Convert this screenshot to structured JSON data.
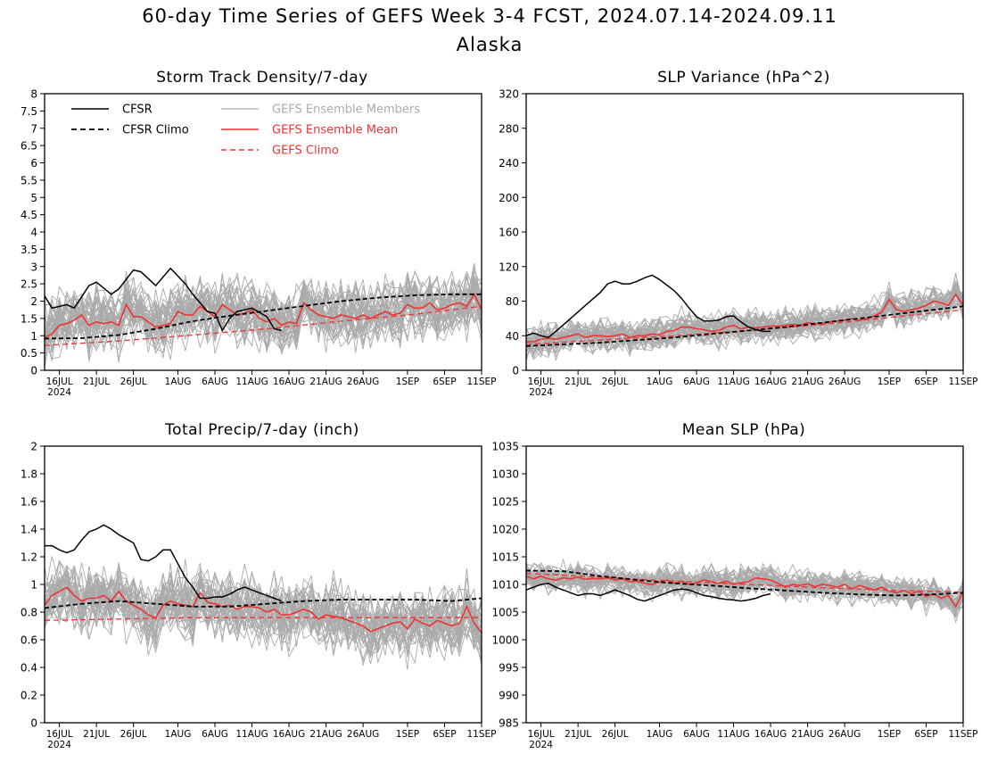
{
  "header": {
    "title_line1": "60-day Time Series of GEFS Week 3-4 FCST, 2024.07.14-2024.09.11",
    "title_line2": "Alaska"
  },
  "legend": {
    "cfsr": "CFSR",
    "cfsr_climo": "CFSR Climo",
    "gefs_members": "GEFS Ensemble Members",
    "gefs_mean": "GEFS Ensemble Mean",
    "gefs_climo": "GEFS Climo"
  },
  "colors": {
    "cfsr": "#000000",
    "members": "#aaaaaa",
    "gefs": "#ee3333"
  },
  "x_axis": {
    "tick_labels": [
      "16JUL",
      "21JUL",
      "26JUL",
      "1AUG",
      "6AUG",
      "11AUG",
      "16AUG",
      "21AUG",
      "26AUG",
      "1SEP",
      "6SEP",
      "11SEP"
    ],
    "tick_days": [
      2,
      7,
      12,
      18,
      23,
      28,
      33,
      38,
      43,
      49,
      54,
      59
    ],
    "year_label": "2024",
    "range": [
      0,
      59
    ]
  },
  "chart_data": [
    {
      "type": "line",
      "title": "Storm Track Density/7-day",
      "ylim": [
        0,
        8
      ],
      "yticks": [
        0,
        0.5,
        1,
        1.5,
        2,
        2.5,
        3,
        3.5,
        4,
        4.5,
        5,
        5.5,
        6,
        6.5,
        7,
        7.5,
        8
      ],
      "ytick_labels": [
        "0",
        "0.5",
        "1",
        "1.5",
        "2",
        "2.5",
        "3",
        "3.5",
        "4",
        "4.5",
        "5",
        "5.5",
        "6",
        "6.5",
        "7",
        "7.5",
        "8"
      ],
      "cfsr": {
        "x": [
          0,
          1,
          3,
          4,
          6,
          7,
          9,
          10,
          12,
          13,
          15,
          17,
          19,
          20,
          22,
          23,
          24,
          25,
          26,
          27,
          28,
          30,
          31,
          32
        ],
        "y": [
          2.15,
          1.8,
          1.9,
          1.8,
          2.45,
          2.55,
          2.2,
          2.35,
          2.9,
          2.85,
          2.45,
          2.95,
          2.5,
          2.2,
          1.7,
          1.65,
          1.15,
          1.5,
          1.7,
          1.75,
          1.8,
          1.55,
          1.2,
          1.15
        ]
      },
      "cfsr_climo": {
        "x": [
          0,
          5,
          10,
          15,
          20,
          25,
          30,
          35,
          40,
          45,
          50,
          55,
          59
        ],
        "y": [
          0.92,
          0.93,
          1.02,
          1.2,
          1.42,
          1.58,
          1.72,
          1.86,
          2.0,
          2.1,
          2.17,
          2.2,
          2.2
        ]
      },
      "gefs_mean": {
        "x": [
          0,
          1,
          2,
          3,
          4,
          5,
          6,
          7,
          8,
          9,
          10,
          11,
          12,
          13,
          14,
          15,
          16,
          17,
          18,
          19,
          20,
          21,
          22,
          23,
          24,
          25,
          26,
          27,
          28,
          29,
          30,
          31,
          32,
          33,
          34,
          35,
          36,
          37,
          38,
          39,
          40,
          41,
          42,
          43,
          44,
          45,
          46,
          47,
          48,
          49,
          50,
          51,
          52,
          53,
          54,
          55,
          56,
          57,
          58,
          59
        ],
        "y": [
          0.95,
          1.05,
          1.3,
          1.35,
          1.45,
          1.6,
          1.3,
          1.4,
          1.35,
          1.4,
          1.3,
          1.9,
          1.55,
          1.55,
          1.4,
          1.25,
          1.3,
          1.35,
          1.7,
          1.6,
          1.6,
          1.85,
          1.7,
          1.55,
          1.9,
          1.75,
          1.6,
          1.65,
          1.75,
          1.5,
          1.4,
          1.5,
          1.3,
          1.4,
          1.35,
          1.95,
          1.75,
          1.6,
          1.55,
          1.5,
          1.6,
          1.55,
          1.5,
          1.6,
          1.5,
          1.6,
          1.7,
          1.6,
          1.65,
          1.9,
          1.8,
          1.8,
          1.95,
          1.75,
          1.8,
          1.9,
          1.95,
          1.85,
          2.2,
          1.75
        ]
      },
      "gefs_climo": {
        "x": [
          0,
          10,
          20,
          30,
          40,
          50,
          59
        ],
        "y": [
          0.72,
          0.85,
          1.02,
          1.2,
          1.42,
          1.62,
          1.85
        ]
      },
      "members": {
        "count": 40,
        "spread": 0.75,
        "center_offset": 0.05
      }
    },
    {
      "type": "line",
      "title": "SLP Variance (hPa^2)",
      "ylim": [
        0,
        320
      ],
      "yticks": [
        0,
        40,
        80,
        120,
        160,
        200,
        240,
        280,
        320
      ],
      "ytick_labels": [
        "0",
        "40",
        "80",
        "120",
        "160",
        "200",
        "240",
        "280",
        "320"
      ],
      "cfsr": {
        "x": [
          0,
          1,
          2,
          3,
          4,
          6,
          8,
          10,
          11,
          12,
          13,
          14,
          15,
          16,
          17,
          18,
          20,
          21,
          22,
          23,
          24,
          25,
          26,
          27,
          28,
          29,
          30,
          31,
          32,
          33
        ],
        "y": [
          40,
          43,
          40,
          38,
          45,
          60,
          75,
          90,
          100,
          103,
          100,
          100,
          103,
          107,
          110,
          105,
          92,
          83,
          72,
          62,
          57,
          57,
          58,
          62,
          63,
          56,
          50,
          47,
          45,
          45
        ]
      },
      "cfsr_climo": {
        "x": [
          0,
          5,
          10,
          15,
          20,
          25,
          30,
          35,
          40,
          45,
          50,
          55,
          59
        ],
        "y": [
          28,
          30,
          32,
          35,
          38,
          42,
          46,
          50,
          55,
          60,
          65,
          70,
          74
        ]
      },
      "gefs_mean": {
        "x": [
          0,
          1,
          2,
          3,
          4,
          5,
          6,
          7,
          8,
          9,
          10,
          11,
          12,
          13,
          14,
          15,
          16,
          17,
          18,
          19,
          20,
          21,
          22,
          23,
          24,
          25,
          26,
          27,
          28,
          29,
          30,
          31,
          32,
          33,
          34,
          35,
          36,
          37,
          38,
          39,
          40,
          41,
          42,
          43,
          44,
          45,
          46,
          47,
          48,
          49,
          50,
          51,
          52,
          53,
          54,
          55,
          56,
          57,
          58,
          59
        ],
        "y": [
          33,
          33,
          36,
          37,
          36,
          38,
          40,
          42,
          38,
          40,
          40,
          39,
          40,
          42,
          38,
          40,
          40,
          42,
          41,
          45,
          46,
          50,
          50,
          48,
          47,
          45,
          46,
          50,
          52,
          48,
          50,
          49,
          50,
          51,
          51,
          52,
          53,
          52,
          55,
          54,
          54,
          56,
          57,
          58,
          60,
          58,
          60,
          63,
          67,
          82,
          70,
          68,
          70,
          72,
          75,
          80,
          78,
          75,
          88,
          75
        ]
      },
      "gefs_climo": {
        "x": [
          0,
          10,
          20,
          30,
          40,
          50,
          59
        ],
        "y": [
          30,
          35,
          40,
          46,
          53,
          62,
          70
        ]
      },
      "members": {
        "count": 40,
        "spread": 16,
        "center_offset": 0
      }
    },
    {
      "type": "line",
      "title": "Total Precip/7-day (inch)",
      "ylim": [
        0,
        2
      ],
      "yticks": [
        0,
        0.2,
        0.4,
        0.6,
        0.8,
        1,
        1.2,
        1.4,
        1.6,
        1.8,
        2
      ],
      "ytick_labels": [
        "0",
        "0.2",
        "0.4",
        "0.6",
        "0.8",
        "1",
        "1.2",
        "1.4",
        "1.6",
        "1.8",
        "2"
      ],
      "cfsr": {
        "x": [
          0,
          1,
          2,
          3,
          4,
          5,
          6,
          7,
          8,
          9,
          10,
          12,
          13,
          14,
          15,
          16,
          17,
          18,
          19,
          20,
          21,
          22,
          23,
          24,
          25,
          26,
          27,
          28,
          29,
          30,
          31,
          32
        ],
        "y": [
          1.28,
          1.28,
          1.25,
          1.23,
          1.25,
          1.32,
          1.38,
          1.4,
          1.43,
          1.4,
          1.36,
          1.3,
          1.18,
          1.17,
          1.2,
          1.25,
          1.25,
          1.15,
          1.05,
          0.98,
          0.9,
          0.9,
          0.91,
          0.91,
          0.93,
          0.96,
          0.98,
          0.96,
          0.94,
          0.92,
          0.9,
          0.88
        ]
      },
      "cfsr_climo": {
        "x": [
          0,
          5,
          10,
          15,
          20,
          25,
          30,
          35,
          40,
          45,
          50,
          55,
          59
        ],
        "y": [
          0.83,
          0.86,
          0.88,
          0.86,
          0.84,
          0.84,
          0.86,
          0.88,
          0.89,
          0.89,
          0.89,
          0.88,
          0.9
        ]
      },
      "gefs_mean": {
        "x": [
          0,
          1,
          2,
          3,
          4,
          5,
          6,
          7,
          8,
          9,
          10,
          11,
          12,
          13,
          14,
          15,
          16,
          17,
          18,
          19,
          20,
          21,
          22,
          23,
          24,
          25,
          26,
          27,
          28,
          29,
          30,
          31,
          32,
          33,
          34,
          35,
          36,
          37,
          38,
          39,
          40,
          41,
          42,
          43,
          44,
          45,
          46,
          47,
          48,
          49,
          50,
          51,
          52,
          53,
          54,
          55,
          56,
          57,
          58,
          59
        ],
        "y": [
          0.85,
          0.92,
          0.95,
          0.98,
          0.92,
          0.88,
          0.9,
          0.9,
          0.92,
          0.88,
          0.95,
          0.88,
          0.85,
          0.82,
          0.78,
          0.76,
          0.85,
          0.88,
          0.86,
          0.85,
          0.84,
          0.94,
          0.87,
          0.86,
          0.84,
          0.85,
          0.82,
          0.84,
          0.84,
          0.83,
          0.8,
          0.82,
          0.78,
          0.78,
          0.8,
          0.82,
          0.8,
          0.75,
          0.78,
          0.77,
          0.76,
          0.74,
          0.72,
          0.7,
          0.66,
          0.68,
          0.7,
          0.72,
          0.73,
          0.68,
          0.75,
          0.72,
          0.7,
          0.74,
          0.72,
          0.7,
          0.72,
          0.84,
          0.72,
          0.65
        ]
      },
      "gefs_climo": {
        "x": [
          0,
          10,
          20,
          30,
          40,
          50,
          59
        ],
        "y": [
          0.74,
          0.75,
          0.76,
          0.76,
          0.76,
          0.76,
          0.76
        ]
      },
      "members": {
        "count": 40,
        "spread": 0.2,
        "center_offset": 0
      }
    },
    {
      "type": "line",
      "title": "Mean SLP (hPa)",
      "ylim": [
        985,
        1035
      ],
      "yticks": [
        985,
        990,
        995,
        1000,
        1005,
        1010,
        1015,
        1020,
        1025,
        1030,
        1035
      ],
      "ytick_labels": [
        "985",
        "990",
        "995",
        "1000",
        "1005",
        "1010",
        "1015",
        "1020",
        "1025",
        "1030",
        "1035"
      ],
      "cfsr": {
        "x": [
          0,
          1,
          2,
          3,
          4,
          5,
          6,
          7,
          8,
          9,
          10,
          11,
          12,
          13,
          14,
          15,
          16,
          17,
          18,
          19,
          20,
          21,
          22,
          23,
          24,
          25,
          26,
          27,
          28,
          29,
          30,
          31,
          32,
          33
        ],
        "y": [
          1009,
          1009.5,
          1010,
          1010.2,
          1009.5,
          1009,
          1008.5,
          1008,
          1008.3,
          1008.3,
          1008,
          1008.5,
          1009,
          1008.5,
          1008,
          1007.3,
          1007,
          1007.5,
          1008,
          1008.5,
          1009,
          1009.2,
          1009,
          1008.5,
          1008,
          1007.8,
          1007.5,
          1007.3,
          1007.2,
          1007,
          1007.2,
          1007.5,
          1008,
          1008.3
        ]
      },
      "cfsr_climo": {
        "x": [
          0,
          5,
          10,
          15,
          20,
          25,
          30,
          35,
          40,
          45,
          50,
          55,
          59
        ],
        "y": [
          1012.5,
          1012.4,
          1011.5,
          1010.8,
          1010.2,
          1009.8,
          1009.3,
          1008.9,
          1008.5,
          1008.2,
          1008,
          1008.2,
          1008.5
        ]
      },
      "gefs_mean": {
        "x": [
          0,
          1,
          2,
          3,
          4,
          5,
          6,
          7,
          8,
          9,
          10,
          11,
          12,
          13,
          14,
          15,
          16,
          17,
          18,
          19,
          20,
          21,
          22,
          23,
          24,
          25,
          26,
          27,
          28,
          29,
          30,
          31,
          32,
          33,
          34,
          35,
          36,
          37,
          38,
          39,
          40,
          41,
          42,
          43,
          44,
          45,
          46,
          47,
          48,
          49,
          50,
          51,
          52,
          53,
          54,
          55,
          56,
          57,
          58,
          59
        ],
        "y": [
          1011.5,
          1011,
          1011.5,
          1011,
          1010.8,
          1011.2,
          1011,
          1011.3,
          1010.9,
          1011.1,
          1011,
          1011.2,
          1010.8,
          1011,
          1010.5,
          1010.6,
          1010.2,
          1010,
          1010.4,
          1010.8,
          1010.2,
          1010.6,
          1010,
          1010.3,
          1010.8,
          1010.5,
          1010.2,
          1010.6,
          1010,
          1010.3,
          1010.5,
          1011.2,
          1011,
          1010.8,
          1010.2,
          1009.5,
          1010,
          1009.8,
          1010.1,
          1009.6,
          1010,
          1009.8,
          1009.5,
          1010,
          1009.2,
          1009.8,
          1009.4,
          1009,
          1009.5,
          1008.8,
          1008.5,
          1008.9,
          1008.3,
          1008.8,
          1007.8,
          1008.3,
          1007.5,
          1008,
          1006,
          1008.8
        ]
      },
      "gefs_climo": {
        "x": [
          0,
          10,
          20,
          30,
          40,
          50,
          59
        ],
        "y": [
          1012,
          1011.3,
          1010.6,
          1010,
          1009.4,
          1008.9,
          1008.6
        ]
      },
      "members": {
        "count": 40,
        "spread": 2.2,
        "center_offset": 0
      }
    }
  ]
}
